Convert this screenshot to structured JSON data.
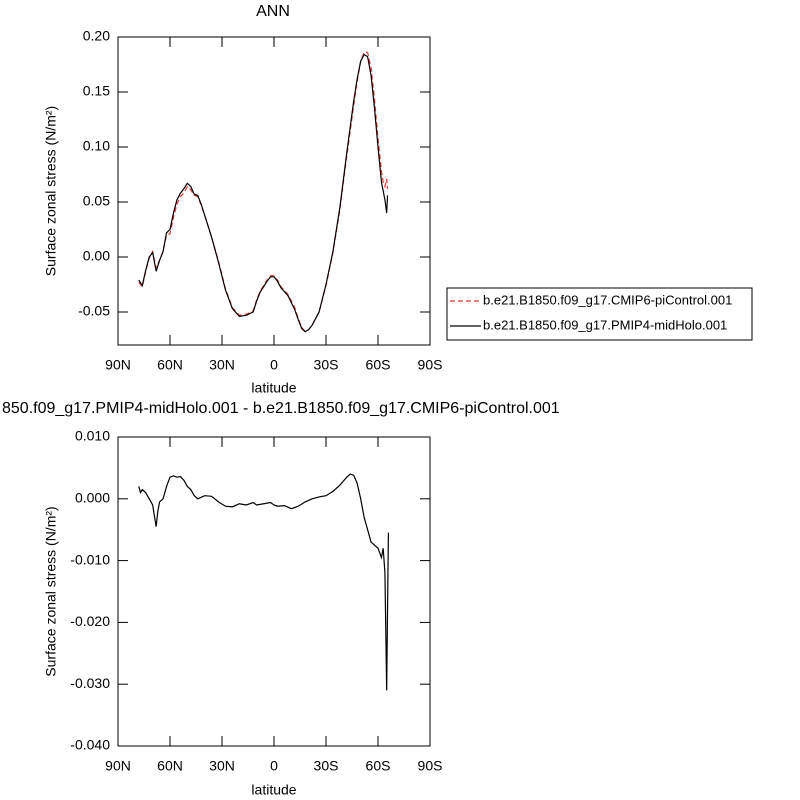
{
  "chart_data": [
    {
      "type": "line",
      "title": "ANN",
      "xlabel": "latitude",
      "ylabel": "Surface zonal stress (N/m²)",
      "xlim": [
        90,
        -90
      ],
      "ylim": [
        -0.08,
        0.2
      ],
      "xticks": [
        {
          "value": 90,
          "label": "90N"
        },
        {
          "value": 60,
          "label": "60N"
        },
        {
          "value": 30,
          "label": "30N"
        },
        0,
        {
          "value": -30,
          "label": "30S"
        },
        {
          "value": -60,
          "label": "60S"
        },
        {
          "value": -90,
          "label": "90S"
        }
      ],
      "yticks": [
        {
          "value": 0.2,
          "label": "0.20"
        },
        0.15,
        {
          "value": 0.1,
          "label": "0.10"
        },
        0.05,
        {
          "value": 0,
          "label": "0.00"
        },
        -0.05
      ],
      "legend": "right",
      "x": [
        78,
        76,
        74,
        72,
        70,
        68,
        66,
        64,
        62,
        60,
        58,
        56,
        54,
        52,
        50,
        48,
        46,
        44,
        42,
        40,
        36,
        32,
        28,
        24,
        20,
        16,
        12,
        10,
        8,
        4,
        2,
        0,
        -2,
        -4,
        -8,
        -12,
        -14,
        -16,
        -18,
        -20,
        -22,
        -26,
        -30,
        -34,
        -38,
        -42,
        -46,
        -48,
        -50,
        -52,
        -54,
        -56,
        -58,
        -60,
        -62,
        -63,
        -64,
        -65,
        -65.5
      ],
      "series": [
        {
          "name": "b.e21.B1850.f09_g17.CMIP6-piControl.001",
          "color": "#e8332d",
          "linestyle": "dashed",
          "values": [
            -0.023,
            -0.027,
            -0.013,
            -0.001,
            0.005,
            -0.01,
            -0.003,
            0.005,
            0.02,
            0.021,
            0.036,
            0.048,
            0.055,
            0.058,
            0.064,
            0.061,
            0.056,
            0.055,
            0.047,
            0.038,
            0.018,
            -0.004,
            -0.029,
            -0.046,
            -0.053,
            -0.052,
            -0.049,
            -0.039,
            -0.031,
            -0.021,
            -0.017,
            -0.017,
            -0.021,
            -0.027,
            -0.034,
            -0.046,
            -0.056,
            -0.064,
            -0.068,
            -0.066,
            -0.062,
            -0.05,
            -0.026,
            0.004,
            0.043,
            0.092,
            0.138,
            0.16,
            0.178,
            0.186,
            0.186,
            0.172,
            0.143,
            0.108,
            0.078,
            0.068,
            0.064,
            0.071,
            0.062
          ]
        },
        {
          "name": "b.e21.B1850.f09_g17.PMIP4-midHolo.001",
          "color": "#000000",
          "linestyle": "solid",
          "values": [
            -0.021,
            -0.026,
            -0.012,
            0.0,
            0.004,
            -0.013,
            -0.003,
            0.005,
            0.022,
            0.025,
            0.04,
            0.052,
            0.058,
            0.062,
            0.067,
            0.064,
            0.057,
            0.056,
            0.048,
            0.038,
            0.018,
            -0.005,
            -0.03,
            -0.047,
            -0.054,
            -0.053,
            -0.05,
            -0.04,
            -0.032,
            -0.022,
            -0.018,
            -0.018,
            -0.022,
            -0.028,
            -0.035,
            -0.048,
            -0.057,
            -0.065,
            -0.068,
            -0.066,
            -0.062,
            -0.05,
            -0.025,
            0.005,
            0.045,
            0.095,
            0.142,
            0.162,
            0.178,
            0.184,
            0.182,
            0.165,
            0.135,
            0.1,
            0.068,
            0.06,
            0.052,
            0.04,
            0.056
          ]
        }
      ]
    },
    {
      "type": "line",
      "title": "850.f09_g17.PMIP4-midHolo.001 - b.e21.B1850.f09_g17.CMIP6-piControl.001",
      "xlabel": "latitude",
      "ylabel": "Surface zonal stress (N/m²)",
      "xlim": [
        90,
        -90
      ],
      "ylim": [
        -0.04,
        0.01
      ],
      "xticks": [
        {
          "value": 90,
          "label": "90N"
        },
        {
          "value": 60,
          "label": "60N"
        },
        {
          "value": 30,
          "label": "30N"
        },
        0,
        {
          "value": -30,
          "label": "30S"
        },
        {
          "value": -60,
          "label": "60S"
        },
        {
          "value": -90,
          "label": "90S"
        }
      ],
      "yticks": [
        {
          "value": 0.01,
          "label": "0.010"
        },
        {
          "value": 0,
          "label": "0.000"
        },
        {
          "value": -0.01,
          "label": "-0.010"
        },
        {
          "value": -0.02,
          "label": "-0.020"
        },
        {
          "value": -0.03,
          "label": "-0.030"
        },
        {
          "value": -0.04,
          "label": "-0.040"
        }
      ],
      "x": [
        78,
        77,
        76,
        74,
        72,
        70,
        68,
        67,
        66,
        64,
        62,
        60,
        58,
        56,
        54,
        52,
        50,
        48,
        46,
        44,
        40,
        36,
        32,
        28,
        24,
        20,
        16,
        12,
        10,
        6,
        2,
        0,
        -2,
        -6,
        -10,
        -14,
        -18,
        -22,
        -26,
        -30,
        -34,
        -38,
        -42,
        -44,
        -46,
        -48,
        -50,
        -52,
        -54,
        -56,
        -58,
        -60,
        -62,
        -63,
        -64,
        -65,
        -65.5,
        -66
      ],
      "series": [
        {
          "color": "#000000",
          "linestyle": "solid",
          "values": [
            0.002,
            0.001,
            0.0015,
            0.001,
            0.0,
            -0.001,
            -0.0045,
            -0.002,
            -0.0005,
            0.0,
            0.002,
            0.0035,
            0.0037,
            0.0035,
            0.0036,
            0.003,
            0.002,
            0.0015,
            0.0005,
            0.0,
            0.0005,
            0.0004,
            -0.0005,
            -0.0012,
            -0.0013,
            -0.0008,
            -0.001,
            -0.0006,
            -0.001,
            -0.0008,
            -0.0006,
            -0.001,
            -0.0012,
            -0.0011,
            -0.0016,
            -0.0012,
            -0.0005,
            0.0,
            0.0003,
            0.0005,
            0.0012,
            0.0022,
            0.0035,
            0.004,
            0.0038,
            0.0025,
            0.0,
            -0.003,
            -0.005,
            -0.007,
            -0.0075,
            -0.008,
            -0.0095,
            -0.008,
            -0.012,
            -0.031,
            -0.018,
            -0.0055
          ]
        }
      ]
    }
  ]
}
